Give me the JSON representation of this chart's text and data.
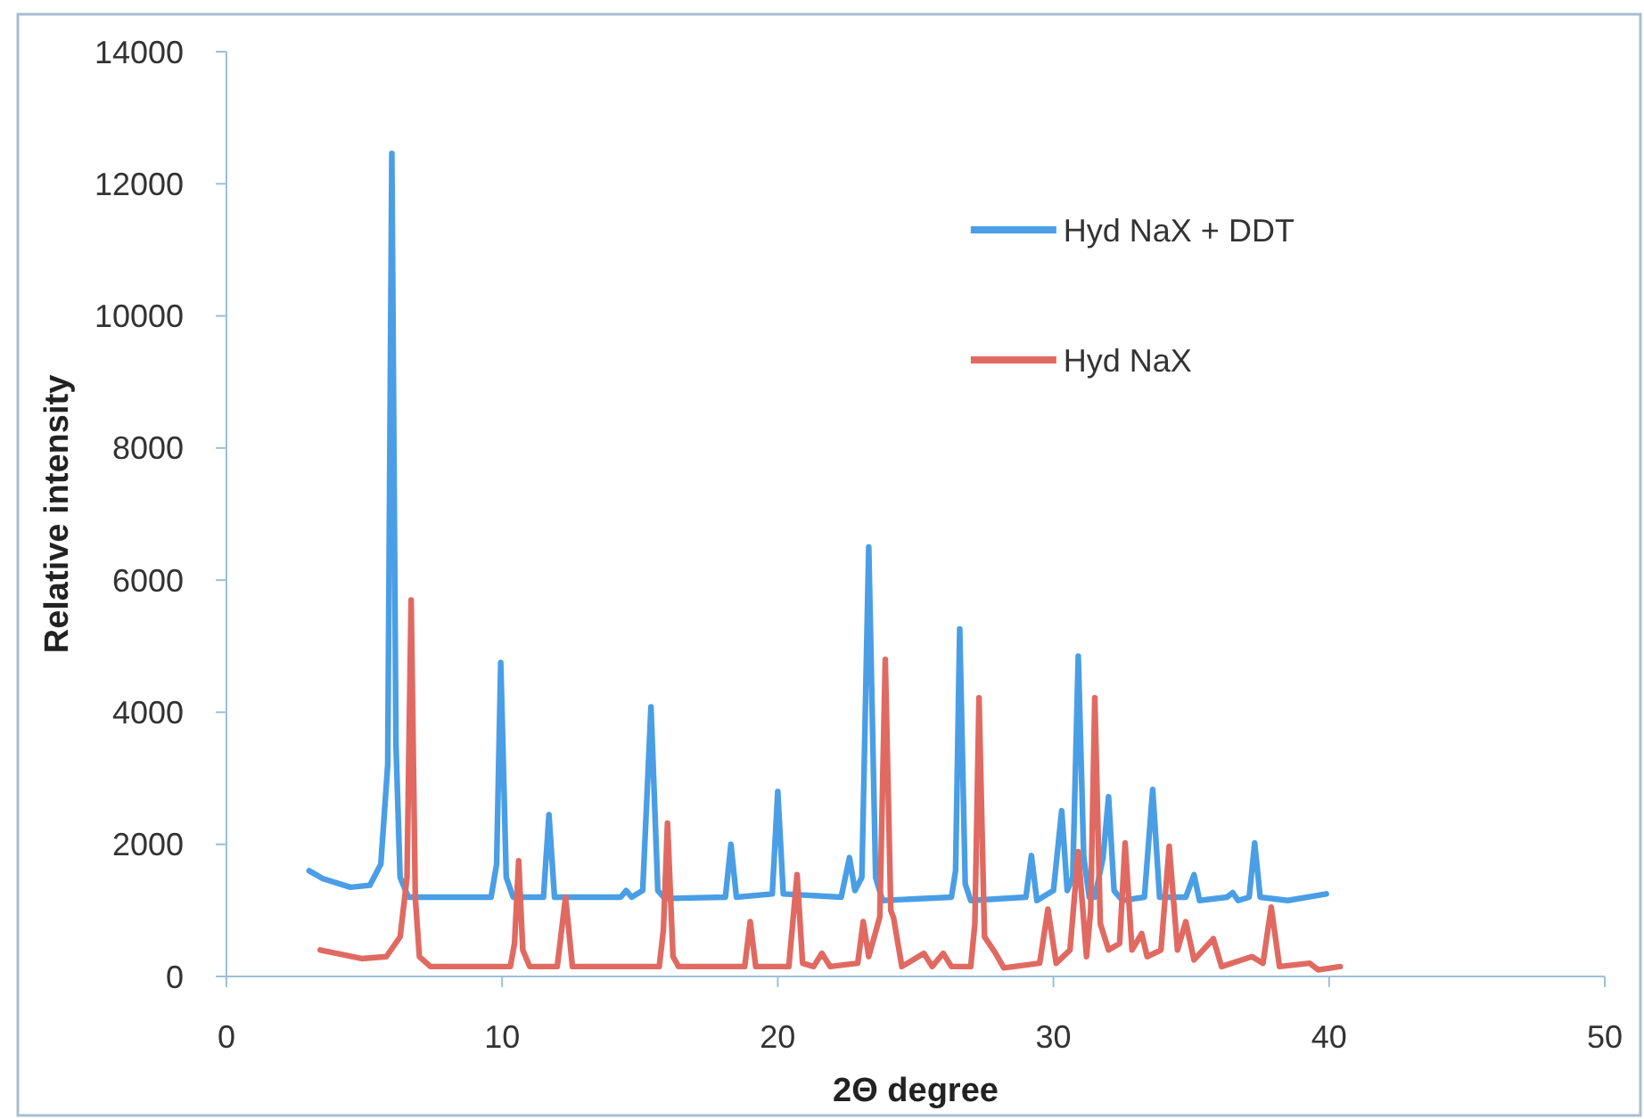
{
  "chart_data": {
    "type": "line",
    "xlabel": "2Θ degree",
    "ylabel": "Relative intensity",
    "xlim": [
      0,
      50
    ],
    "xticks": [
      0,
      10,
      20,
      30,
      40,
      50
    ],
    "ylim": [
      0,
      14000
    ],
    "yticks": [
      0,
      2000,
      4000,
      6000,
      8000,
      10000,
      12000,
      14000
    ],
    "legend": "top right",
    "series": [
      {
        "name": "Hyd NaX + DDT",
        "color": "#4a9ee5",
        "x": [
          3.0,
          3.5,
          4.5,
          5.2,
          5.6,
          5.85,
          6.0,
          6.15,
          6.3,
          6.6,
          9.6,
          9.8,
          9.95,
          10.15,
          10.4,
          11.5,
          11.7,
          11.9,
          14.3,
          14.5,
          14.7,
          15.1,
          15.4,
          15.65,
          15.9,
          18.1,
          18.3,
          18.5,
          19.8,
          20.0,
          20.2,
          22.3,
          22.6,
          22.8,
          23.05,
          23.3,
          23.55,
          23.8,
          26.3,
          26.45,
          26.6,
          26.8,
          27.0,
          29.0,
          29.2,
          29.4,
          30.0,
          30.3,
          30.5,
          30.7,
          30.9,
          31.1,
          31.3,
          31.5,
          31.8,
          32.0,
          32.2,
          32.5,
          33.3,
          33.6,
          33.85,
          34.8,
          35.1,
          35.3,
          36.3,
          36.5,
          36.7,
          37.1,
          37.3,
          37.5,
          38.5,
          39.9
        ],
        "values": [
          1600,
          1480,
          1350,
          1380,
          1700,
          3200,
          12460,
          3500,
          1500,
          1200,
          1200,
          1700,
          4750,
          1500,
          1200,
          1200,
          2450,
          1200,
          1200,
          1300,
          1200,
          1300,
          4080,
          1300,
          1180,
          1200,
          2000,
          1200,
          1250,
          2800,
          1250,
          1200,
          1800,
          1300,
          1500,
          6500,
          1500,
          1150,
          1200,
          1600,
          5260,
          1400,
          1150,
          1200,
          1830,
          1150,
          1300,
          2510,
          1300,
          1500,
          4850,
          1800,
          1200,
          1200,
          1800,
          2720,
          1300,
          1150,
          1200,
          2830,
          1200,
          1200,
          1540,
          1150,
          1200,
          1270,
          1150,
          1200,
          2020,
          1200,
          1150,
          1250
        ]
      },
      {
        "name": "Hyd NaX",
        "color": "#e06a62",
        "x": [
          3.4,
          4.0,
          4.9,
          5.8,
          6.3,
          6.55,
          6.7,
          6.85,
          7.0,
          7.4,
          10.3,
          10.45,
          10.6,
          10.75,
          11.0,
          12.0,
          12.3,
          12.55,
          15.7,
          15.85,
          16.0,
          16.2,
          16.4,
          18.8,
          19.0,
          19.2,
          20.4,
          20.7,
          20.9,
          21.3,
          21.6,
          21.9,
          22.9,
          23.1,
          23.3,
          23.7,
          23.9,
          24.1,
          24.2,
          24.5,
          25.3,
          25.6,
          26.0,
          26.3,
          27.0,
          27.15,
          27.3,
          27.5,
          27.9,
          28.2,
          29.5,
          29.8,
          30.1,
          30.6,
          30.9,
          31.2,
          31.35,
          31.5,
          31.7,
          32.0,
          32.4,
          32.6,
          32.85,
          33.2,
          33.4,
          33.9,
          34.2,
          34.5,
          34.8,
          35.1,
          35.8,
          36.1,
          37.2,
          37.6,
          37.9,
          38.2,
          39.3,
          39.6,
          40.4
        ],
        "values": [
          400,
          350,
          270,
          300,
          600,
          1500,
          5700,
          1200,
          300,
          150,
          150,
          500,
          1750,
          400,
          150,
          150,
          1200,
          150,
          150,
          700,
          2320,
          300,
          150,
          150,
          830,
          150,
          150,
          1540,
          200,
          150,
          350,
          150,
          200,
          830,
          300,
          900,
          4800,
          1000,
          890,
          150,
          350,
          150,
          350,
          150,
          150,
          800,
          4220,
          600,
          350,
          130,
          200,
          1020,
          200,
          400,
          1890,
          300,
          1000,
          4220,
          800,
          400,
          500,
          2020,
          400,
          650,
          300,
          400,
          1970,
          400,
          830,
          250,
          570,
          150,
          300,
          200,
          1050,
          150,
          200,
          100,
          150
        ]
      }
    ]
  }
}
